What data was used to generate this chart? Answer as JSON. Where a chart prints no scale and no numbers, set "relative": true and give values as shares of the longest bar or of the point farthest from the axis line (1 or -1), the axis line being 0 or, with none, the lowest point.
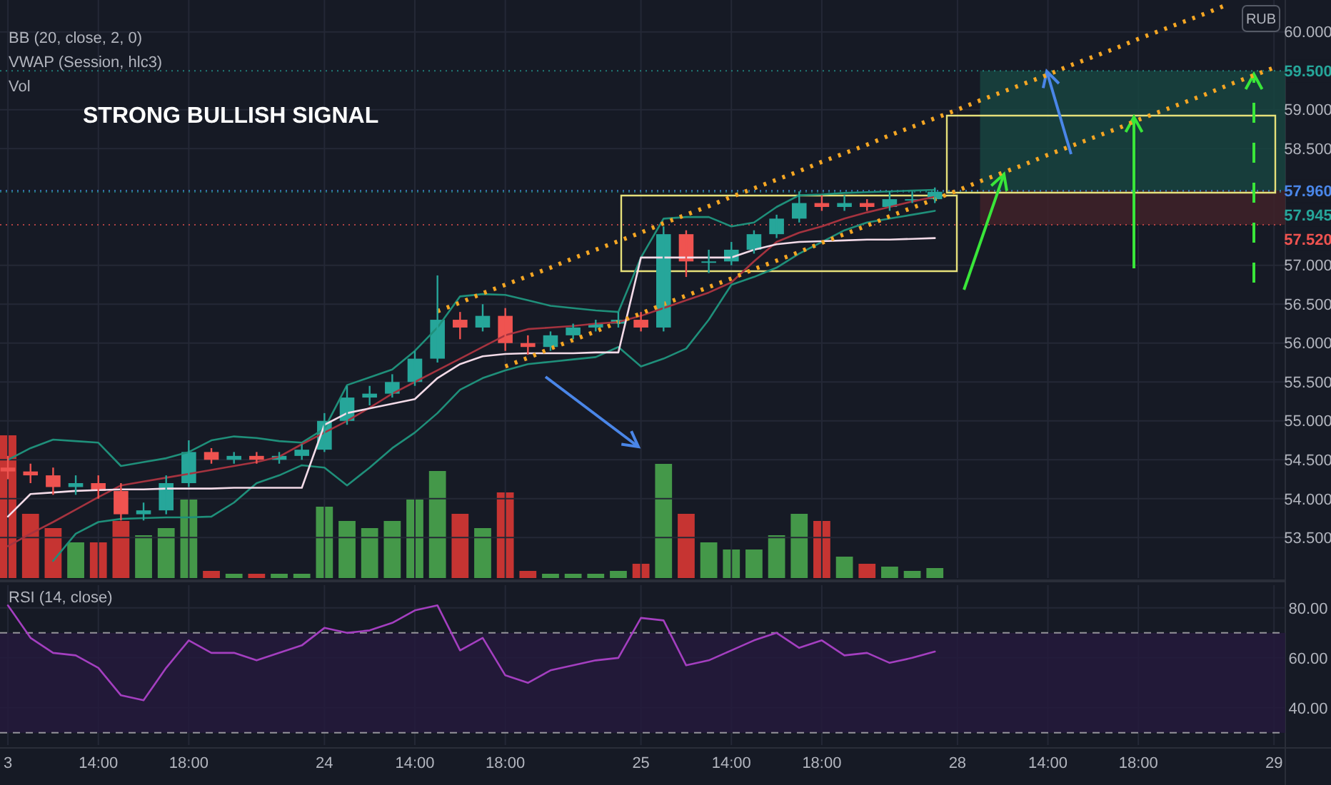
{
  "chart_data": [
    {
      "type": "candlestick",
      "title": "STRONG BULLISH SIGNAL",
      "annotations": [
        "BB (20, close, 2, 0)",
        "VWAP (Session, hlc3)",
        "Vol",
        "RUB"
      ],
      "categories": [
        null,
        null,
        null,
        null,
        null,
        null,
        null,
        null,
        null,
        null,
        null,
        null,
        null,
        null,
        null,
        null,
        null,
        null,
        null,
        null,
        null,
        null,
        null,
        null,
        null,
        null,
        null,
        null,
        null,
        null,
        null,
        null,
        null,
        null,
        null,
        null,
        null,
        null,
        null,
        null,
        null,
        null,
        null,
        null,
        null,
        null,
        null,
        null,
        null,
        null,
        null,
        null,
        null,
        null,
        null,
        null,
        null
      ],
      "ohlc": [
        [
          54.4,
          54.55,
          54.25,
          54.35
        ],
        [
          54.35,
          54.45,
          54.2,
          54.3
        ],
        [
          54.3,
          54.4,
          54.05,
          54.15
        ],
        [
          54.15,
          54.3,
          54.05,
          54.2
        ],
        [
          54.2,
          54.3,
          54.0,
          54.1
        ],
        [
          54.1,
          54.2,
          53.72,
          53.8
        ],
        [
          53.8,
          53.95,
          53.72,
          53.85
        ],
        [
          53.85,
          54.3,
          53.8,
          54.2
        ],
        [
          54.2,
          54.75,
          54.15,
          54.6
        ],
        [
          54.6,
          54.65,
          54.45,
          54.5
        ],
        [
          54.5,
          54.6,
          54.45,
          54.55
        ],
        [
          54.55,
          54.6,
          54.45,
          54.5
        ],
        [
          54.5,
          54.6,
          54.45,
          54.55
        ],
        [
          54.55,
          54.7,
          54.5,
          54.63
        ],
        [
          54.63,
          55.1,
          54.6,
          55.0
        ],
        [
          55.0,
          55.45,
          54.95,
          55.3
        ],
        [
          55.3,
          55.45,
          55.2,
          55.35
        ],
        [
          55.35,
          55.6,
          55.3,
          55.5
        ],
        [
          55.5,
          55.9,
          55.45,
          55.8
        ],
        [
          55.8,
          56.87,
          55.75,
          56.3
        ],
        [
          56.3,
          56.4,
          56.05,
          56.2
        ],
        [
          56.2,
          56.5,
          56.15,
          56.35
        ],
        [
          56.35,
          56.45,
          55.9,
          56.0
        ],
        [
          56.0,
          56.1,
          55.85,
          55.95
        ],
        [
          55.95,
          56.15,
          55.9,
          56.1
        ],
        [
          56.1,
          56.25,
          56.05,
          56.2
        ],
        [
          56.2,
          56.3,
          56.15,
          56.25
        ],
        [
          56.25,
          56.4,
          56.2,
          56.3
        ],
        [
          56.3,
          56.4,
          56.15,
          56.2
        ],
        [
          56.2,
          57.5,
          56.15,
          57.4
        ],
        [
          57.4,
          57.45,
          56.85,
          57.05
        ],
        [
          57.05,
          57.2,
          56.9,
          57.05
        ],
        [
          57.05,
          57.3,
          57.0,
          57.2
        ],
        [
          57.2,
          57.45,
          57.15,
          57.4
        ],
        [
          57.4,
          57.65,
          57.35,
          57.6
        ],
        [
          57.6,
          57.95,
          57.55,
          57.8
        ],
        [
          57.8,
          57.9,
          57.7,
          57.75
        ],
        [
          57.75,
          57.9,
          57.7,
          57.8
        ],
        [
          57.8,
          57.85,
          57.7,
          57.75
        ],
        [
          57.75,
          57.95,
          57.7,
          57.85
        ],
        [
          57.85,
          57.95,
          57.8,
          57.85
        ],
        [
          57.85,
          58.0,
          57.8,
          57.945
        ],
        null,
        null,
        null,
        null,
        null,
        null,
        null,
        null,
        null,
        null,
        null,
        null,
        null,
        null,
        null
      ],
      "colors": [
        "#ef5350",
        "#ef5350",
        "#ef5350",
        "#26a69a",
        "#ef5350",
        "#ef5350",
        "#26a69a",
        "#26a69a",
        "#26a69a",
        "#ef5350",
        "#26a69a",
        "#ef5350",
        "#26a69a",
        "#26a69a",
        "#26a69a",
        "#26a69a",
        "#26a69a",
        "#26a69a",
        "#26a69a",
        "#26a69a",
        "#ef5350",
        "#26a69a",
        "#ef5350",
        "#ef5350",
        "#26a69a",
        "#26a69a",
        "#26a69a",
        "#26a69a",
        "#ef5350",
        "#26a69a",
        "#ef5350",
        "#26a69a",
        "#26a69a",
        "#26a69a",
        "#26a69a",
        "#26a69a",
        "#ef5350",
        "#26a69a",
        "#ef5350",
        "#26a69a",
        "#26a69a",
        "#26a69a",
        null,
        null,
        null,
        null,
        null,
        null,
        null,
        null,
        null,
        null,
        null,
        null,
        null,
        null,
        null
      ],
      "series": [
        {
          "type": "line",
          "color": "#1f8f7a",
          "values": [
            54.5,
            54.65,
            54.76,
            54.74,
            54.72,
            54.42,
            54.47,
            54.52,
            54.6,
            54.75,
            54.8,
            54.78,
            54.74,
            54.72,
            54.9,
            55.46,
            55.56,
            55.66,
            55.9,
            56.2,
            56.6,
            56.63,
            56.62,
            56.55,
            56.48,
            56.45,
            56.42,
            56.4,
            57.1,
            57.6,
            57.62,
            57.62,
            57.5,
            57.55,
            57.75,
            57.9,
            57.91,
            57.93,
            57.94,
            57.95,
            57.96,
            57.97,
            null,
            null,
            null,
            null,
            null,
            null,
            null,
            null,
            null,
            null,
            null,
            null,
            null,
            null,
            null
          ]
        },
        {
          "type": "line",
          "color": "#1f8f7a",
          "values": [
            null,
            null,
            53.2,
            53.55,
            53.7,
            53.74,
            53.75,
            53.76,
            53.76,
            53.77,
            53.95,
            54.2,
            54.3,
            54.43,
            54.4,
            54.17,
            54.4,
            54.65,
            54.85,
            55.1,
            55.4,
            55.55,
            55.65,
            55.73,
            55.76,
            55.79,
            55.82,
            55.95,
            55.7,
            55.8,
            55.93,
            56.3,
            56.75,
            56.85,
            56.97,
            57.15,
            57.3,
            57.45,
            57.55,
            57.6,
            57.65,
            57.7,
            null,
            null,
            null,
            null,
            null,
            null,
            null,
            null,
            null,
            null,
            null,
            null,
            null,
            null,
            null
          ]
        },
        {
          "type": "line",
          "color": "#a5333f",
          "values": [
            53.39,
            53.55,
            53.7,
            53.86,
            54.02,
            54.17,
            54.22,
            54.27,
            54.32,
            54.37,
            54.42,
            54.47,
            54.54,
            54.7,
            54.85,
            55.0,
            55.17,
            55.35,
            55.5,
            55.65,
            55.8,
            55.95,
            56.1,
            56.18,
            56.2,
            56.22,
            56.25,
            56.27,
            56.35,
            56.45,
            56.55,
            56.65,
            56.78,
            57.05,
            57.3,
            57.42,
            57.5,
            57.6,
            57.68,
            57.75,
            57.82,
            57.88,
            null,
            null,
            null,
            null,
            null,
            null,
            null,
            null,
            null,
            null,
            null,
            null,
            null,
            null,
            null
          ]
        },
        {
          "type": "line",
          "color": "#f3dbe8",
          "values": [
            53.77,
            54.06,
            54.08,
            54.1,
            54.11,
            54.12,
            54.12,
            54.13,
            54.13,
            54.13,
            54.14,
            54.14,
            54.14,
            54.14,
            54.95,
            55.1,
            55.16,
            55.22,
            55.28,
            55.55,
            55.73,
            55.83,
            55.86,
            55.87,
            55.87,
            55.87,
            55.88,
            55.88,
            57.1,
            57.1,
            57.1,
            57.1,
            57.1,
            57.2,
            57.27,
            57.3,
            57.31,
            57.32,
            57.33,
            57.33,
            57.34,
            57.35,
            null,
            null,
            null,
            null,
            null,
            null,
            null,
            null,
            null,
            null,
            null,
            null,
            null,
            null,
            null
          ]
        },
        {
          "type": "line",
          "color": "#f5a623",
          "line_style": "dotted",
          "values": [
            null,
            null,
            null,
            null,
            null,
            null,
            null,
            null,
            null,
            null,
            null,
            null,
            null,
            null,
            null,
            null,
            null,
            null,
            null,
            56.41,
            56.52,
            56.64,
            56.75,
            56.86,
            56.97,
            57.09,
            57.2,
            57.31,
            57.42,
            57.54,
            57.65,
            57.76,
            57.88,
            57.99,
            58.1,
            58.21,
            58.33,
            58.44,
            58.55,
            58.67,
            58.78,
            58.89,
            59.0,
            59.12,
            59.23,
            59.34,
            59.45,
            59.57,
            59.68,
            59.79,
            59.91,
            60.02,
            60.13,
            60.24,
            60.36,
            null,
            null
          ]
        },
        {
          "type": "line",
          "color": "#f5a623",
          "line_style": "dotted",
          "values": [
            null,
            null,
            null,
            null,
            null,
            null,
            null,
            null,
            null,
            null,
            null,
            null,
            null,
            null,
            null,
            null,
            null,
            null,
            null,
            null,
            null,
            null,
            55.7,
            55.81,
            55.93,
            56.04,
            56.15,
            56.27,
            56.38,
            56.5,
            56.61,
            56.72,
            56.83,
            56.95,
            57.06,
            57.17,
            57.29,
            57.4,
            57.51,
            57.63,
            57.74,
            57.85,
            57.96,
            58.08,
            58.19,
            58.3,
            58.42,
            58.53,
            58.64,
            58.75,
            58.87,
            58.98,
            59.09,
            59.2,
            59.32,
            59.43,
            59.54
          ]
        }
      ],
      "bands": [
        {
          "axis": "y",
          "from": 57.96,
          "to": 59.5,
          "color": "#17443f"
        },
        {
          "axis": "y",
          "from": 57.52,
          "to": 57.96,
          "color": "#3f2229"
        }
      ],
      "ref_lines": [
        {
          "axis": "y",
          "value": 59.5,
          "label": "59.500",
          "color": "#26a69a"
        },
        {
          "axis": "y",
          "value": 57.96,
          "label": "57.960",
          "color": "#4a86e8"
        },
        {
          "axis": "y",
          "value": 57.945,
          "label": "57.945",
          "color": "#26a69a"
        },
        {
          "axis": "y",
          "value": 57.52,
          "label": "57.520",
          "color": "#ef5350"
        }
      ],
      "ylim": [
        52.98,
        60.41
      ],
      "yticks": [
        {
          "value": 53.5,
          "label": "53.500"
        },
        {
          "value": 54,
          "label": "54.000"
        },
        {
          "value": 54.5,
          "label": "54.500"
        },
        {
          "value": 55,
          "label": "55.000"
        },
        {
          "value": 55.5,
          "label": "55.500"
        },
        {
          "value": 56,
          "label": "56.000"
        },
        {
          "value": 56.5,
          "label": "56.500"
        },
        {
          "value": 57,
          "label": "57.000"
        },
        {
          "value": 58.5,
          "label": "58.500"
        },
        {
          "value": 59,
          "label": "59.000"
        },
        {
          "value": 60,
          "label": "60.000"
        }
      ],
      "grid": true,
      "tick_labels": "y"
    },
    {
      "type": "bar",
      "relative": true,
      "tick_labels": false,
      "categories": [
        null,
        null,
        null,
        null,
        null,
        null,
        null,
        null,
        null,
        null,
        null,
        null,
        null,
        null,
        null,
        null,
        null,
        null,
        null,
        null,
        null,
        null,
        null,
        null,
        null,
        null,
        null,
        null,
        null,
        null,
        null,
        null,
        null,
        null,
        null,
        null,
        null,
        null,
        null,
        null,
        null,
        null,
        null,
        null,
        null,
        null,
        null,
        null,
        null,
        null,
        null,
        null,
        null,
        null,
        null,
        null,
        null
      ],
      "values": [
        1.0,
        0.45,
        0.35,
        0.25,
        0.25,
        0.4,
        0.3,
        0.35,
        0.55,
        0.05,
        0.03,
        0.03,
        0.03,
        0.03,
        0.5,
        0.4,
        0.35,
        0.4,
        0.55,
        0.75,
        0.45,
        0.35,
        0.6,
        0.05,
        0.03,
        0.03,
        0.03,
        0.05,
        0.1,
        0.8,
        0.45,
        0.25,
        0.2,
        0.2,
        0.3,
        0.45,
        0.4,
        0.15,
        0.1,
        0.08,
        0.05,
        0.07,
        null,
        null,
        null,
        null,
        null,
        null,
        null,
        null,
        null,
        null,
        null,
        null,
        null,
        null,
        null
      ],
      "colors": [
        "#e53935",
        "#e53935",
        "#e53935",
        "#4caf50",
        "#e53935",
        "#e53935",
        "#4caf50",
        "#4caf50",
        "#4caf50",
        "#e53935",
        "#4caf50",
        "#e53935",
        "#4caf50",
        "#4caf50",
        "#4caf50",
        "#4caf50",
        "#4caf50",
        "#4caf50",
        "#4caf50",
        "#4caf50",
        "#e53935",
        "#4caf50",
        "#e53935",
        "#e53935",
        "#4caf50",
        "#4caf50",
        "#4caf50",
        "#4caf50",
        "#e53935",
        "#4caf50",
        "#e53935",
        "#4caf50",
        "#4caf50",
        "#4caf50",
        "#4caf50",
        "#4caf50",
        "#e53935",
        "#4caf50",
        "#e53935",
        "#4caf50",
        "#4caf50",
        "#4caf50",
        null,
        null,
        null,
        null,
        null,
        null,
        null,
        null,
        null,
        null,
        null,
        null,
        null,
        null,
        null
      ]
    },
    {
      "type": "line",
      "title": "RSI (14, close)",
      "categories": [
        "3",
        null,
        null,
        null,
        "14:00",
        null,
        null,
        null,
        "18:00",
        null,
        null,
        null,
        null,
        null,
        "24",
        null,
        null,
        null,
        "14:00",
        null,
        null,
        null,
        "18:00",
        null,
        null,
        null,
        null,
        null,
        "25",
        null,
        null,
        null,
        "14:00",
        null,
        null,
        null,
        "18:00",
        null,
        null,
        null,
        null,
        null,
        "28",
        null,
        null,
        null,
        "14:00",
        null,
        null,
        null,
        "18:00",
        null,
        null,
        null,
        null,
        null,
        "29"
      ],
      "series": [
        {
          "color": "#a43fc0",
          "values": [
            81,
            68,
            62,
            61,
            56,
            45,
            43,
            56,
            67,
            62,
            62,
            59,
            62,
            65,
            72,
            70,
            71,
            74,
            79,
            81,
            63,
            68,
            53,
            50,
            55,
            57,
            59,
            60,
            76,
            75,
            57,
            59,
            63,
            67,
            70,
            64,
            67,
            61,
            62,
            58,
            60,
            62.5,
            null,
            null,
            null,
            null,
            null,
            null,
            null,
            null,
            null,
            null,
            null,
            null,
            null,
            null,
            null
          ]
        }
      ],
      "bands": [
        {
          "axis": "y",
          "from": 30,
          "to": 70,
          "color": "#241a3c"
        }
      ],
      "ref_lines": [
        {
          "axis": "y",
          "value": 70,
          "line_style": "dashed",
          "color": "#c8c8c8"
        },
        {
          "axis": "y",
          "value": 30,
          "line_style": "dashed",
          "color": "#c8c8c8"
        }
      ],
      "ylim": [
        25.1,
        89.1
      ],
      "yticks": [
        {
          "value": 40,
          "label": "40.00"
        },
        {
          "value": 60,
          "label": "60.00"
        },
        {
          "value": 80,
          "label": "80.00"
        }
      ],
      "grid": true
    }
  ]
}
